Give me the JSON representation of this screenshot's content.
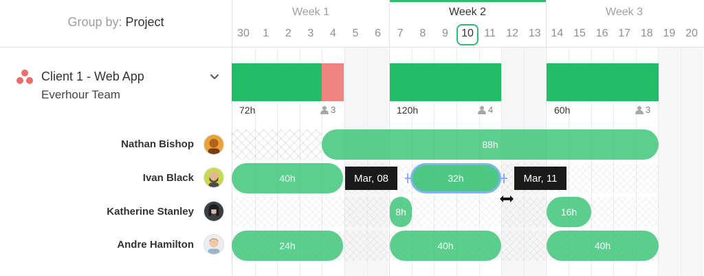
{
  "header": {
    "group_by_label": "Group by:",
    "group_by_value": "Project",
    "weeks": [
      {
        "label": "Week 1",
        "current": false
      },
      {
        "label": "Week 2",
        "current": true
      },
      {
        "label": "Week 3",
        "current": false
      }
    ],
    "days": [
      "30",
      "1",
      "2",
      "3",
      "4",
      "5",
      "6",
      "7",
      "8",
      "9",
      "10",
      "11",
      "12",
      "13",
      "14",
      "15",
      "16",
      "17",
      "18",
      "19",
      "20"
    ],
    "today": "10",
    "accent_color": "#2ebd6b"
  },
  "project": {
    "icon": "asana-dots-icon",
    "title": "Client 1 - Web App",
    "subtitle": "Everhour Team",
    "weeks": [
      {
        "hours": "72h",
        "people": "3",
        "over_budget": true
      },
      {
        "hours": "120h",
        "people": "4",
        "over_budget": false
      },
      {
        "hours": "60h",
        "people": "3",
        "over_budget": false
      }
    ]
  },
  "members": [
    {
      "name": "Nathan Bishop",
      "avatar": "avatar-orange",
      "allocations": [
        "88h"
      ]
    },
    {
      "name": "Ivan Black",
      "avatar": "avatar-bearded",
      "allocations": [
        "40h",
        "32h"
      ]
    },
    {
      "name": "Katherine Stanley",
      "avatar": "avatar-dark",
      "allocations": [
        "8h",
        "16h"
      ]
    },
    {
      "name": "Andre Hamilton",
      "avatar": "avatar-light",
      "allocations": [
        "24h",
        "40h",
        "40h"
      ]
    }
  ],
  "drag": {
    "start_tooltip": "Mar, 08",
    "end_tooltip": "Mar, 11",
    "selection_color": "#7fb3f5"
  },
  "colors": {
    "block_green": "#22bd66",
    "block_over": "#f08480",
    "alloc_green": "#2ec06e"
  }
}
